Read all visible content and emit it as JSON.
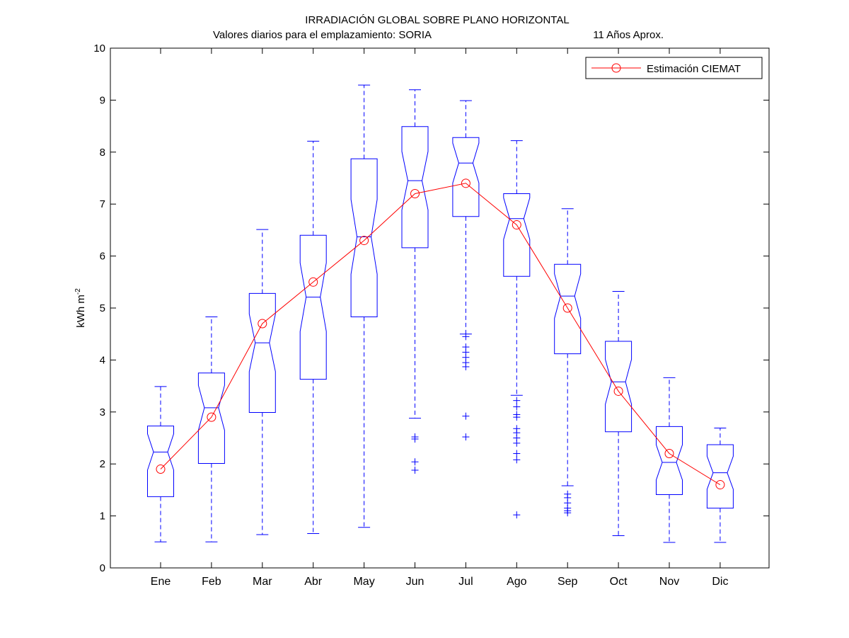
{
  "chart_data": {
    "type": "box",
    "title": "IRRADIACIÓN GLOBAL SOBRE PLANO HORIZONTAL",
    "subtitle_left": "Valores diarios para el emplazamiento:  SORIA",
    "subtitle_right": "11 Años Aprox.",
    "ylabel": "kWh m",
    "ylabel_sup": "-2",
    "ylim": [
      0,
      10
    ],
    "yticks": [
      "0",
      "1",
      "2",
      "3",
      "4",
      "5",
      "6",
      "7",
      "8",
      "9",
      "10"
    ],
    "legend": {
      "label": "Estimación CIEMAT",
      "placement": "top-right"
    },
    "colors": {
      "box": "#0000ff",
      "line": "#ff0000",
      "axis": "#000000"
    },
    "boxes": [
      {
        "month": "Ene",
        "min": 0.5,
        "q1": 1.37,
        "median": 2.23,
        "q3": 2.73,
        "max": 3.49,
        "outliers": []
      },
      {
        "month": "Feb",
        "min": 0.5,
        "q1": 2.01,
        "median": 3.08,
        "q3": 3.75,
        "max": 4.83,
        "outliers": []
      },
      {
        "month": "Mar",
        "min": 0.64,
        "q1": 2.99,
        "median": 4.33,
        "q3": 5.28,
        "max": 6.51,
        "outliers": []
      },
      {
        "month": "Abr",
        "min": 0.66,
        "q1": 3.63,
        "median": 5.21,
        "q3": 6.4,
        "max": 8.21,
        "outliers": []
      },
      {
        "month": "May",
        "min": 0.78,
        "q1": 4.83,
        "median": 6.37,
        "q3": 7.87,
        "max": 9.29,
        "outliers": []
      },
      {
        "month": "Jun",
        "min": 2.88,
        "q1": 6.16,
        "median": 7.45,
        "q3": 8.49,
        "max": 9.2,
        "outliers": [
          2.52,
          2.48,
          2.04,
          1.88
        ]
      },
      {
        "month": "Jul",
        "min": 4.5,
        "q1": 6.76,
        "median": 7.79,
        "q3": 8.28,
        "max": 8.99,
        "outliers": [
          4.45,
          4.25,
          4.15,
          4.05,
          3.95,
          3.87,
          2.92,
          2.52
        ]
      },
      {
        "month": "Ago",
        "min": 3.32,
        "q1": 5.61,
        "median": 6.72,
        "q3": 7.2,
        "max": 8.22,
        "outliers": [
          3.22,
          3.1,
          2.95,
          2.9,
          2.68,
          2.6,
          2.5,
          2.4,
          2.2,
          2.08,
          1.02
        ]
      },
      {
        "month": "Sep",
        "min": 1.58,
        "q1": 4.12,
        "median": 5.23,
        "q3": 5.84,
        "max": 6.91,
        "outliers": [
          1.42,
          1.35,
          1.25,
          1.15,
          1.1,
          1.06
        ]
      },
      {
        "month": "Oct",
        "min": 0.62,
        "q1": 2.62,
        "median": 3.58,
        "q3": 4.36,
        "max": 5.32,
        "outliers": []
      },
      {
        "month": "Nov",
        "min": 0.49,
        "q1": 1.41,
        "median": 2.03,
        "q3": 2.72,
        "max": 3.66,
        "outliers": []
      },
      {
        "month": "Dic",
        "min": 0.49,
        "q1": 1.15,
        "median": 1.83,
        "q3": 2.37,
        "max": 2.69,
        "outliers": []
      }
    ],
    "series": [
      {
        "name": "Estimación CIEMAT",
        "values": [
          1.9,
          2.9,
          4.7,
          5.5,
          6.3,
          7.2,
          7.4,
          6.6,
          5.0,
          3.4,
          2.2,
          1.6
        ]
      }
    ]
  }
}
